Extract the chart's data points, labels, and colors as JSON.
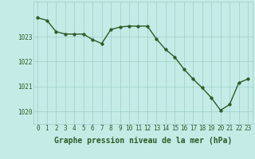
{
  "x": [
    0,
    1,
    2,
    3,
    4,
    5,
    6,
    7,
    8,
    9,
    10,
    11,
    12,
    13,
    14,
    15,
    16,
    17,
    18,
    19,
    20,
    21,
    22,
    23
  ],
  "y": [
    1023.75,
    1023.65,
    1023.2,
    1023.1,
    1023.1,
    1023.1,
    1022.88,
    1022.72,
    1023.28,
    1023.38,
    1023.42,
    1023.42,
    1023.42,
    1022.9,
    1022.48,
    1022.18,
    1021.7,
    1021.3,
    1020.95,
    1020.55,
    1020.05,
    1020.28,
    1021.15,
    1021.3
  ],
  "line_color": "#2d5a27",
  "marker_color": "#2d5a27",
  "bg_color": "#c5ebe6",
  "grid_color": "#9ecdc7",
  "axis_label_color": "#2d5a27",
  "xlabel": "Graphe pression niveau de la mer (hPa)",
  "xlim": [
    -0.5,
    23.5
  ],
  "ylim": [
    1019.5,
    1024.4
  ],
  "yticks": [
    1020,
    1021,
    1022,
    1023
  ],
  "xticks": [
    0,
    1,
    2,
    3,
    4,
    5,
    6,
    7,
    8,
    9,
    10,
    11,
    12,
    13,
    14,
    15,
    16,
    17,
    18,
    19,
    20,
    21,
    22,
    23
  ],
  "tick_fontsize": 5.5,
  "xlabel_fontsize": 7,
  "marker_size": 2.5,
  "line_width": 1.0
}
